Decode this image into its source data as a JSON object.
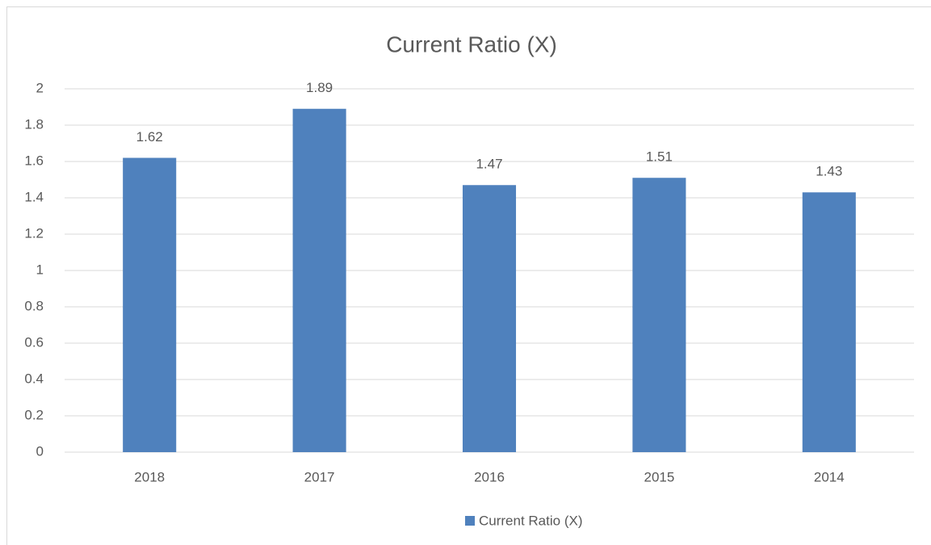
{
  "chart_data": {
    "type": "bar",
    "title": "Current Ratio (X)",
    "categories": [
      "2018",
      "2017",
      "2016",
      "2015",
      "2014"
    ],
    "series": [
      {
        "name": "Current Ratio (X)",
        "color": "#4f81bd",
        "values": [
          1.62,
          1.89,
          1.47,
          1.51,
          1.43
        ]
      }
    ],
    "ylim": [
      0,
      2
    ],
    "yticks": [
      0,
      0.2,
      0.4,
      0.6,
      0.8,
      1,
      1.2,
      1.4,
      1.6,
      1.8,
      2
    ],
    "grid": true,
    "legend": "bottom"
  }
}
